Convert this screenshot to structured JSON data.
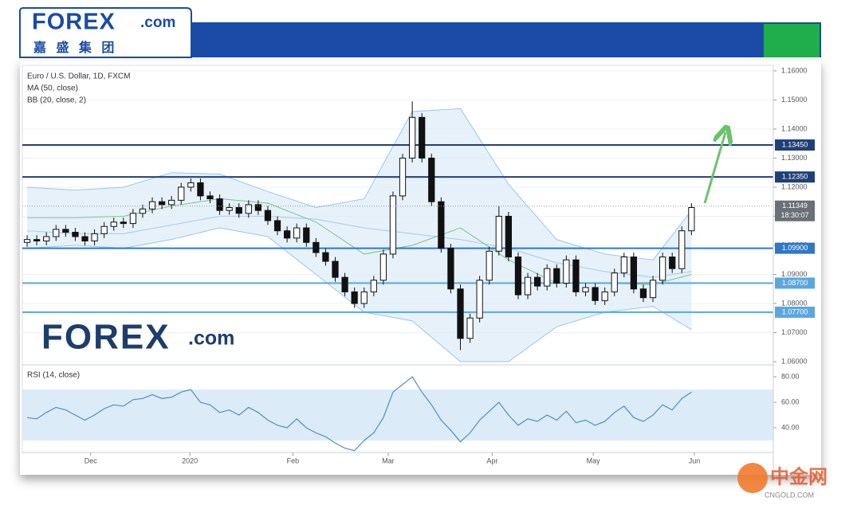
{
  "header": {
    "logo": "FOREX",
    "logo_suffix": ".com",
    "subtitle": "嘉 盛 集 团"
  },
  "watermark": {
    "logo": "FOREX",
    "logo_suffix": ".com"
  },
  "corner_mark": {
    "name": "中金网",
    "site": "CNGOLD.COM"
  },
  "chart_data": [
    {
      "type": "candlestick",
      "title": "Euro / U.S. Dollar, 1D, FXCM",
      "xlim": [
        -0.5,
        77.5
      ],
      "ylim": [
        1.0589,
        1.1619
      ],
      "grid": true,
      "up_color": "#ffffff",
      "down_color": "#111111",
      "yticks": [
        {
          "value": 1.16,
          "label": "1.16000"
        },
        {
          "value": 1.15,
          "label": "1.15000"
        },
        {
          "value": 1.14,
          "label": "1.14000"
        },
        {
          "value": 1.13,
          "label": "1.13000"
        },
        {
          "value": 1.12,
          "label": "1.12000"
        },
        {
          "value": 1.11,
          "label": "1.11000"
        },
        {
          "value": 1.1,
          "label": "1.10000"
        },
        {
          "value": 1.09,
          "label": "1.09000"
        },
        {
          "value": 1.08,
          "label": "1.08000"
        },
        {
          "value": 1.07,
          "label": "1.07000"
        },
        {
          "value": 1.06,
          "label": "1.06000"
        }
      ],
      "open": [
        1.101,
        1.102,
        1.1015,
        1.103,
        1.1055,
        1.1045,
        1.103,
        1.1015,
        1.104,
        1.1065,
        1.108,
        1.1075,
        1.111,
        1.1125,
        1.115,
        1.114,
        1.1155,
        1.12,
        1.1215,
        1.117,
        1.116,
        1.112,
        1.113,
        1.111,
        1.114,
        1.112,
        1.1085,
        1.105,
        1.1025,
        1.106,
        1.101,
        1.0975,
        1.0945,
        1.089,
        1.084,
        1.08,
        1.084,
        1.088,
        1.097,
        1.117,
        1.13,
        1.144,
        1.13,
        1.115,
        1.099,
        1.085,
        1.068,
        1.075,
        1.088,
        1.098,
        1.11,
        1.096,
        1.083,
        1.089,
        1.086,
        1.092,
        1.087,
        1.095,
        1.084,
        1.0855,
        1.081,
        1.084,
        1.0905,
        1.096,
        1.085,
        1.082,
        1.088,
        1.096,
        1.092,
        1.105
      ],
      "high": [
        1.1035,
        1.1035,
        1.1045,
        1.107,
        1.107,
        1.106,
        1.1045,
        1.1055,
        1.108,
        1.1095,
        1.1095,
        1.1125,
        1.114,
        1.1165,
        1.1165,
        1.117,
        1.1215,
        1.123,
        1.123,
        1.1185,
        1.1175,
        1.1145,
        1.1145,
        1.1155,
        1.1155,
        1.1135,
        1.11,
        1.1065,
        1.1075,
        1.1075,
        1.1025,
        1.099,
        1.096,
        1.0905,
        1.0855,
        1.0855,
        1.0895,
        1.0985,
        1.1185,
        1.1315,
        1.1495,
        1.1455,
        1.1315,
        1.1165,
        1.1005,
        1.0865,
        1.0765,
        1.0895,
        1.0995,
        1.1135,
        1.1115,
        1.0975,
        1.0905,
        1.0905,
        1.0935,
        1.0935,
        1.0965,
        1.0965,
        1.087,
        1.087,
        1.0855,
        1.092,
        1.0975,
        1.0975,
        1.0865,
        1.0895,
        1.0975,
        1.0975,
        1.1065,
        1.1145
      ],
      "low": [
        1.0995,
        1.1,
        1.1,
        1.1015,
        1.103,
        1.1015,
        1.1,
        1.1,
        1.1025,
        1.105,
        1.106,
        1.106,
        1.1095,
        1.111,
        1.1125,
        1.1125,
        1.114,
        1.1185,
        1.1155,
        1.1145,
        1.1105,
        1.1105,
        1.1095,
        1.1095,
        1.1105,
        1.107,
        1.1035,
        1.101,
        1.101,
        1.0995,
        1.096,
        1.093,
        1.0875,
        1.0825,
        1.0785,
        1.0785,
        1.0825,
        1.0865,
        1.0955,
        1.1155,
        1.1285,
        1.1285,
        1.1135,
        1.0975,
        1.0835,
        1.064,
        1.0665,
        1.0735,
        1.0865,
        1.0965,
        1.0945,
        1.0815,
        1.0815,
        1.0845,
        1.0845,
        1.0855,
        1.0855,
        1.0825,
        1.0825,
        1.0795,
        1.0795,
        1.0825,
        1.089,
        1.0835,
        1.0805,
        1.0805,
        1.0865,
        1.0905,
        1.0905,
        1.1035
      ],
      "close": [
        1.102,
        1.1015,
        1.103,
        1.1055,
        1.1045,
        1.103,
        1.1015,
        1.104,
        1.1065,
        1.108,
        1.1075,
        1.111,
        1.1125,
        1.115,
        1.114,
        1.1155,
        1.12,
        1.1215,
        1.117,
        1.116,
        1.112,
        1.113,
        1.111,
        1.114,
        1.112,
        1.1085,
        1.105,
        1.1025,
        1.106,
        1.101,
        1.0975,
        1.0945,
        1.089,
        1.084,
        1.08,
        1.084,
        1.088,
        1.097,
        1.117,
        1.13,
        1.144,
        1.13,
        1.115,
        1.099,
        1.085,
        1.068,
        1.075,
        1.088,
        1.098,
        1.11,
        1.096,
        1.083,
        1.089,
        1.086,
        1.092,
        1.087,
        1.095,
        1.084,
        1.0855,
        1.081,
        1.084,
        1.0905,
        1.096,
        1.085,
        1.082,
        1.088,
        1.096,
        1.092,
        1.105,
        1.113
      ],
      "indicators": [
        {
          "name": "MA (50, close)",
          "color": "#4d8fc4",
          "x": [
            0,
            5,
            10,
            15,
            20,
            25,
            30,
            35,
            40,
            45,
            50,
            55,
            60,
            65,
            69
          ],
          "values": [
            1.105,
            1.104,
            1.104,
            1.107,
            1.11,
            1.11,
            1.109,
            1.106,
            1.104,
            1.102,
            1.099,
            1.094,
            1.091,
            1.089,
            1.091
          ]
        },
        {
          "name": "BB (20, close, 2)",
          "color": "#9cc6e8",
          "basis_color": "#7cc48a",
          "x": [
            0,
            5,
            10,
            15,
            20,
            25,
            30,
            35,
            40,
            45,
            50,
            55,
            60,
            65,
            69
          ],
          "upper": [
            1.12,
            1.119,
            1.12,
            1.125,
            1.1245,
            1.1185,
            1.113,
            1.116,
            1.146,
            1.147,
            1.121,
            1.102,
            1.097,
            1.095,
            1.112
          ],
          "basis": [
            1.1095,
            1.1095,
            1.11,
            1.1135,
            1.116,
            1.1145,
            1.108,
            1.097,
            1.1,
            1.106,
            1.095,
            1.087,
            1.087,
            1.0865,
            1.09
          ],
          "lower": [
            1.099,
            1.1,
            1.099,
            1.102,
            1.106,
            1.103,
            1.09,
            1.077,
            1.074,
            1.06,
            1.06,
            1.072,
            1.077,
            1.079,
            1.071
          ]
        }
      ],
      "levels": [
        {
          "value": 1.1345,
          "label": "1.13450",
          "color": "#1f3f7a"
        },
        {
          "value": 1.1235,
          "label": "1.12350",
          "color": "#1f3f7a"
        },
        {
          "value": 1.099,
          "label": "1.09900",
          "color": "#2f78c4"
        },
        {
          "value": 1.087,
          "label": "1.08700",
          "color": "#5aa7e0"
        },
        {
          "value": 1.077,
          "label": "1.07700",
          "color": "#5aa7e0"
        }
      ],
      "last_price": 1.11349,
      "countdown": "18:30:07"
    },
    {
      "type": "line",
      "title": "RSI (14, close)",
      "color": "#4d8fc4",
      "xlim": [
        -0.5,
        77.5
      ],
      "ylim": [
        20.6,
        89.4
      ],
      "band": [
        30,
        70
      ],
      "yticks": [
        {
          "value": 80,
          "label": "80.00"
        },
        {
          "value": 60,
          "label": "60.00"
        },
        {
          "value": 40,
          "label": "40.00"
        }
      ],
      "xticks": [
        {
          "value": 6.6,
          "label": "Dec"
        },
        {
          "value": 16.9,
          "label": "2020"
        },
        {
          "value": 27.6,
          "label": "Feb"
        },
        {
          "value": 37.5,
          "label": "Mar"
        },
        {
          "value": 48.3,
          "label": "Apr"
        },
        {
          "value": 58.8,
          "label": "May"
        },
        {
          "value": 69.3,
          "label": "Jun"
        }
      ],
      "values": [
        48,
        47,
        52,
        56,
        54,
        50,
        46,
        50,
        55,
        58,
        57,
        62,
        63,
        66,
        63,
        64,
        68,
        70,
        60,
        58,
        52,
        54,
        50,
        56,
        52,
        46,
        42,
        40,
        47,
        40,
        36,
        33,
        28,
        24,
        22,
        30,
        36,
        48,
        68,
        74,
        80,
        68,
        58,
        46,
        38,
        29,
        36,
        46,
        53,
        60,
        50,
        42,
        47,
        45,
        50,
        46,
        53,
        44,
        46,
        42,
        45,
        52,
        57,
        48,
        45,
        50,
        58,
        54,
        63,
        68
      ]
    }
  ]
}
